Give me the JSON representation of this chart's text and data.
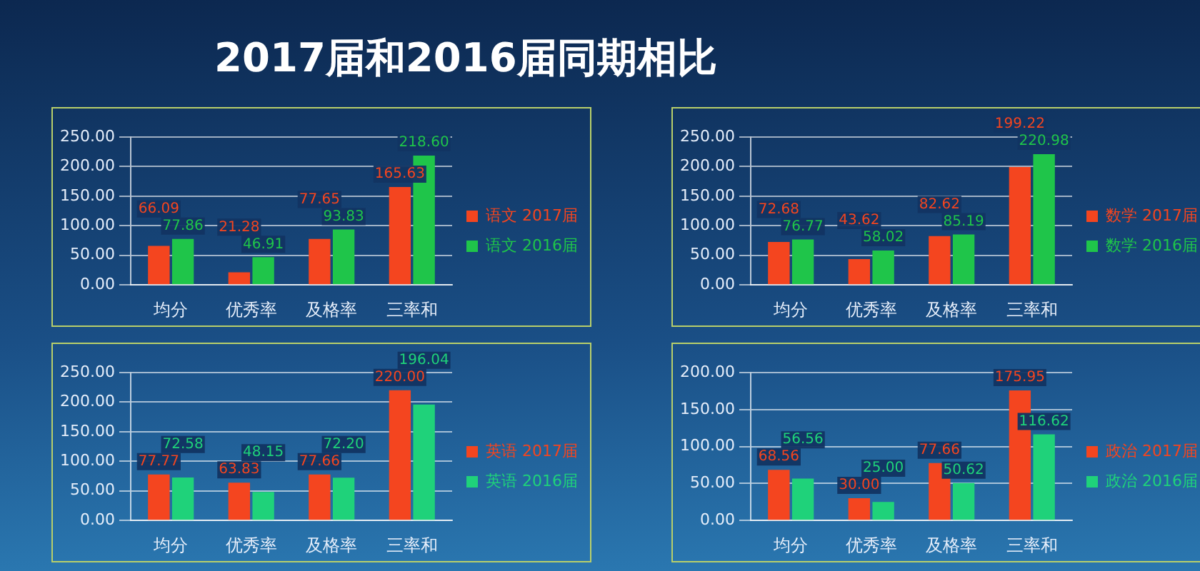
{
  "chart_data": [
    {
      "type": "bar",
      "title": "2017届和2016届同期相比",
      "categories": [
        "均分",
        "优秀率",
        "及格率",
        "三率和"
      ],
      "series": [
        {
          "name": "语文 2017届",
          "color": "#f4451f",
          "values": [
            66.09,
            21.28,
            77.65,
            165.63
          ],
          "value_labels": [
            "66.09",
            "21.28",
            "77.65",
            "165.63"
          ]
        },
        {
          "name": "语文 2016届",
          "color": "#1fc54a",
          "values": [
            77.86,
            46.91,
            93.83,
            218.6
          ],
          "value_labels": [
            "77.86",
            "46.91",
            "93.83",
            "218.60"
          ]
        }
      ],
      "ylim": [
        0,
        250
      ],
      "yticks": [
        {
          "value": 0,
          "label": "0.00"
        },
        {
          "value": 50,
          "label": "50.00"
        },
        {
          "value": 100,
          "label": "100.00"
        },
        {
          "value": 150,
          "label": "150.00"
        },
        {
          "value": 200,
          "label": "200.00"
        },
        {
          "value": 250,
          "label": "250.00"
        }
      ],
      "grid": "y",
      "legend": "right"
    },
    {
      "type": "bar",
      "categories": [
        "均分",
        "优秀率",
        "及格率",
        "三率和"
      ],
      "series": [
        {
          "name": "数学 2017届",
          "color": "#f4451f",
          "values": [
            72.68,
            43.62,
            82.62,
            199.22
          ],
          "value_labels": [
            "72.68",
            "43.62",
            "82.62",
            "199.22"
          ]
        },
        {
          "name": "数学 2016届",
          "color": "#1fc54a",
          "values": [
            76.77,
            58.02,
            85.19,
            220.98
          ],
          "value_labels": [
            "76.77",
            "58.02",
            "85.19",
            "220.98"
          ]
        }
      ],
      "ylim": [
        0,
        250
      ],
      "yticks": [
        {
          "value": 0,
          "label": "0.00"
        },
        {
          "value": 50,
          "label": "50.00"
        },
        {
          "value": 100,
          "label": "100.00"
        },
        {
          "value": 150,
          "label": "150.00"
        },
        {
          "value": 200,
          "label": "200.00"
        },
        {
          "value": 250,
          "label": "250.00"
        }
      ],
      "grid": "y",
      "legend": "right"
    },
    {
      "type": "bar",
      "categories": [
        "均分",
        "优秀率",
        "及格率",
        "三率和"
      ],
      "series": [
        {
          "name": "英语 2017届",
          "color": "#f4451f",
          "values": [
            77.77,
            63.83,
            77.66,
            220
          ],
          "value_labels": [
            "77.77",
            "63.83",
            "77.66",
            "220.00"
          ]
        },
        {
          "name": "英语 2016届",
          "color": "#1fd27a",
          "values": [
            72.58,
            48.15,
            72.2,
            196.04
          ],
          "value_labels": [
            "72.58",
            "48.15",
            "72.20",
            "196.04"
          ]
        }
      ],
      "ylim": [
        0,
        250
      ],
      "yticks": [
        {
          "value": 0,
          "label": "0.00"
        },
        {
          "value": 50,
          "label": "50.00"
        },
        {
          "value": 100,
          "label": "100.00"
        },
        {
          "value": 150,
          "label": "150.00"
        },
        {
          "value": 200,
          "label": "200.00"
        },
        {
          "value": 250,
          "label": "250.00"
        }
      ],
      "grid": "y",
      "legend": "right"
    },
    {
      "type": "bar",
      "categories": [
        "均分",
        "优秀率",
        "及格率",
        "三率和"
      ],
      "series": [
        {
          "name": "政治 2017届",
          "color": "#f4451f",
          "values": [
            68.56,
            30,
            77.66,
            175.95
          ],
          "value_labels": [
            "68.56",
            "30.00",
            "77.66",
            "175.95"
          ]
        },
        {
          "name": "政治 2016届",
          "color": "#1fd27a",
          "values": [
            56.56,
            25,
            50.62,
            116.62
          ],
          "value_labels": [
            "56.56",
            "25.00",
            "50.62",
            "116.62"
          ]
        }
      ],
      "ylim": [
        0,
        200
      ],
      "yticks": [
        {
          "value": 0,
          "label": "0.00"
        },
        {
          "value": 50,
          "label": "50.00"
        },
        {
          "value": 100,
          "label": "100.00"
        },
        {
          "value": 150,
          "label": "150.00"
        },
        {
          "value": 200,
          "label": "200.00"
        }
      ],
      "grid": "y",
      "legend": "right"
    }
  ]
}
